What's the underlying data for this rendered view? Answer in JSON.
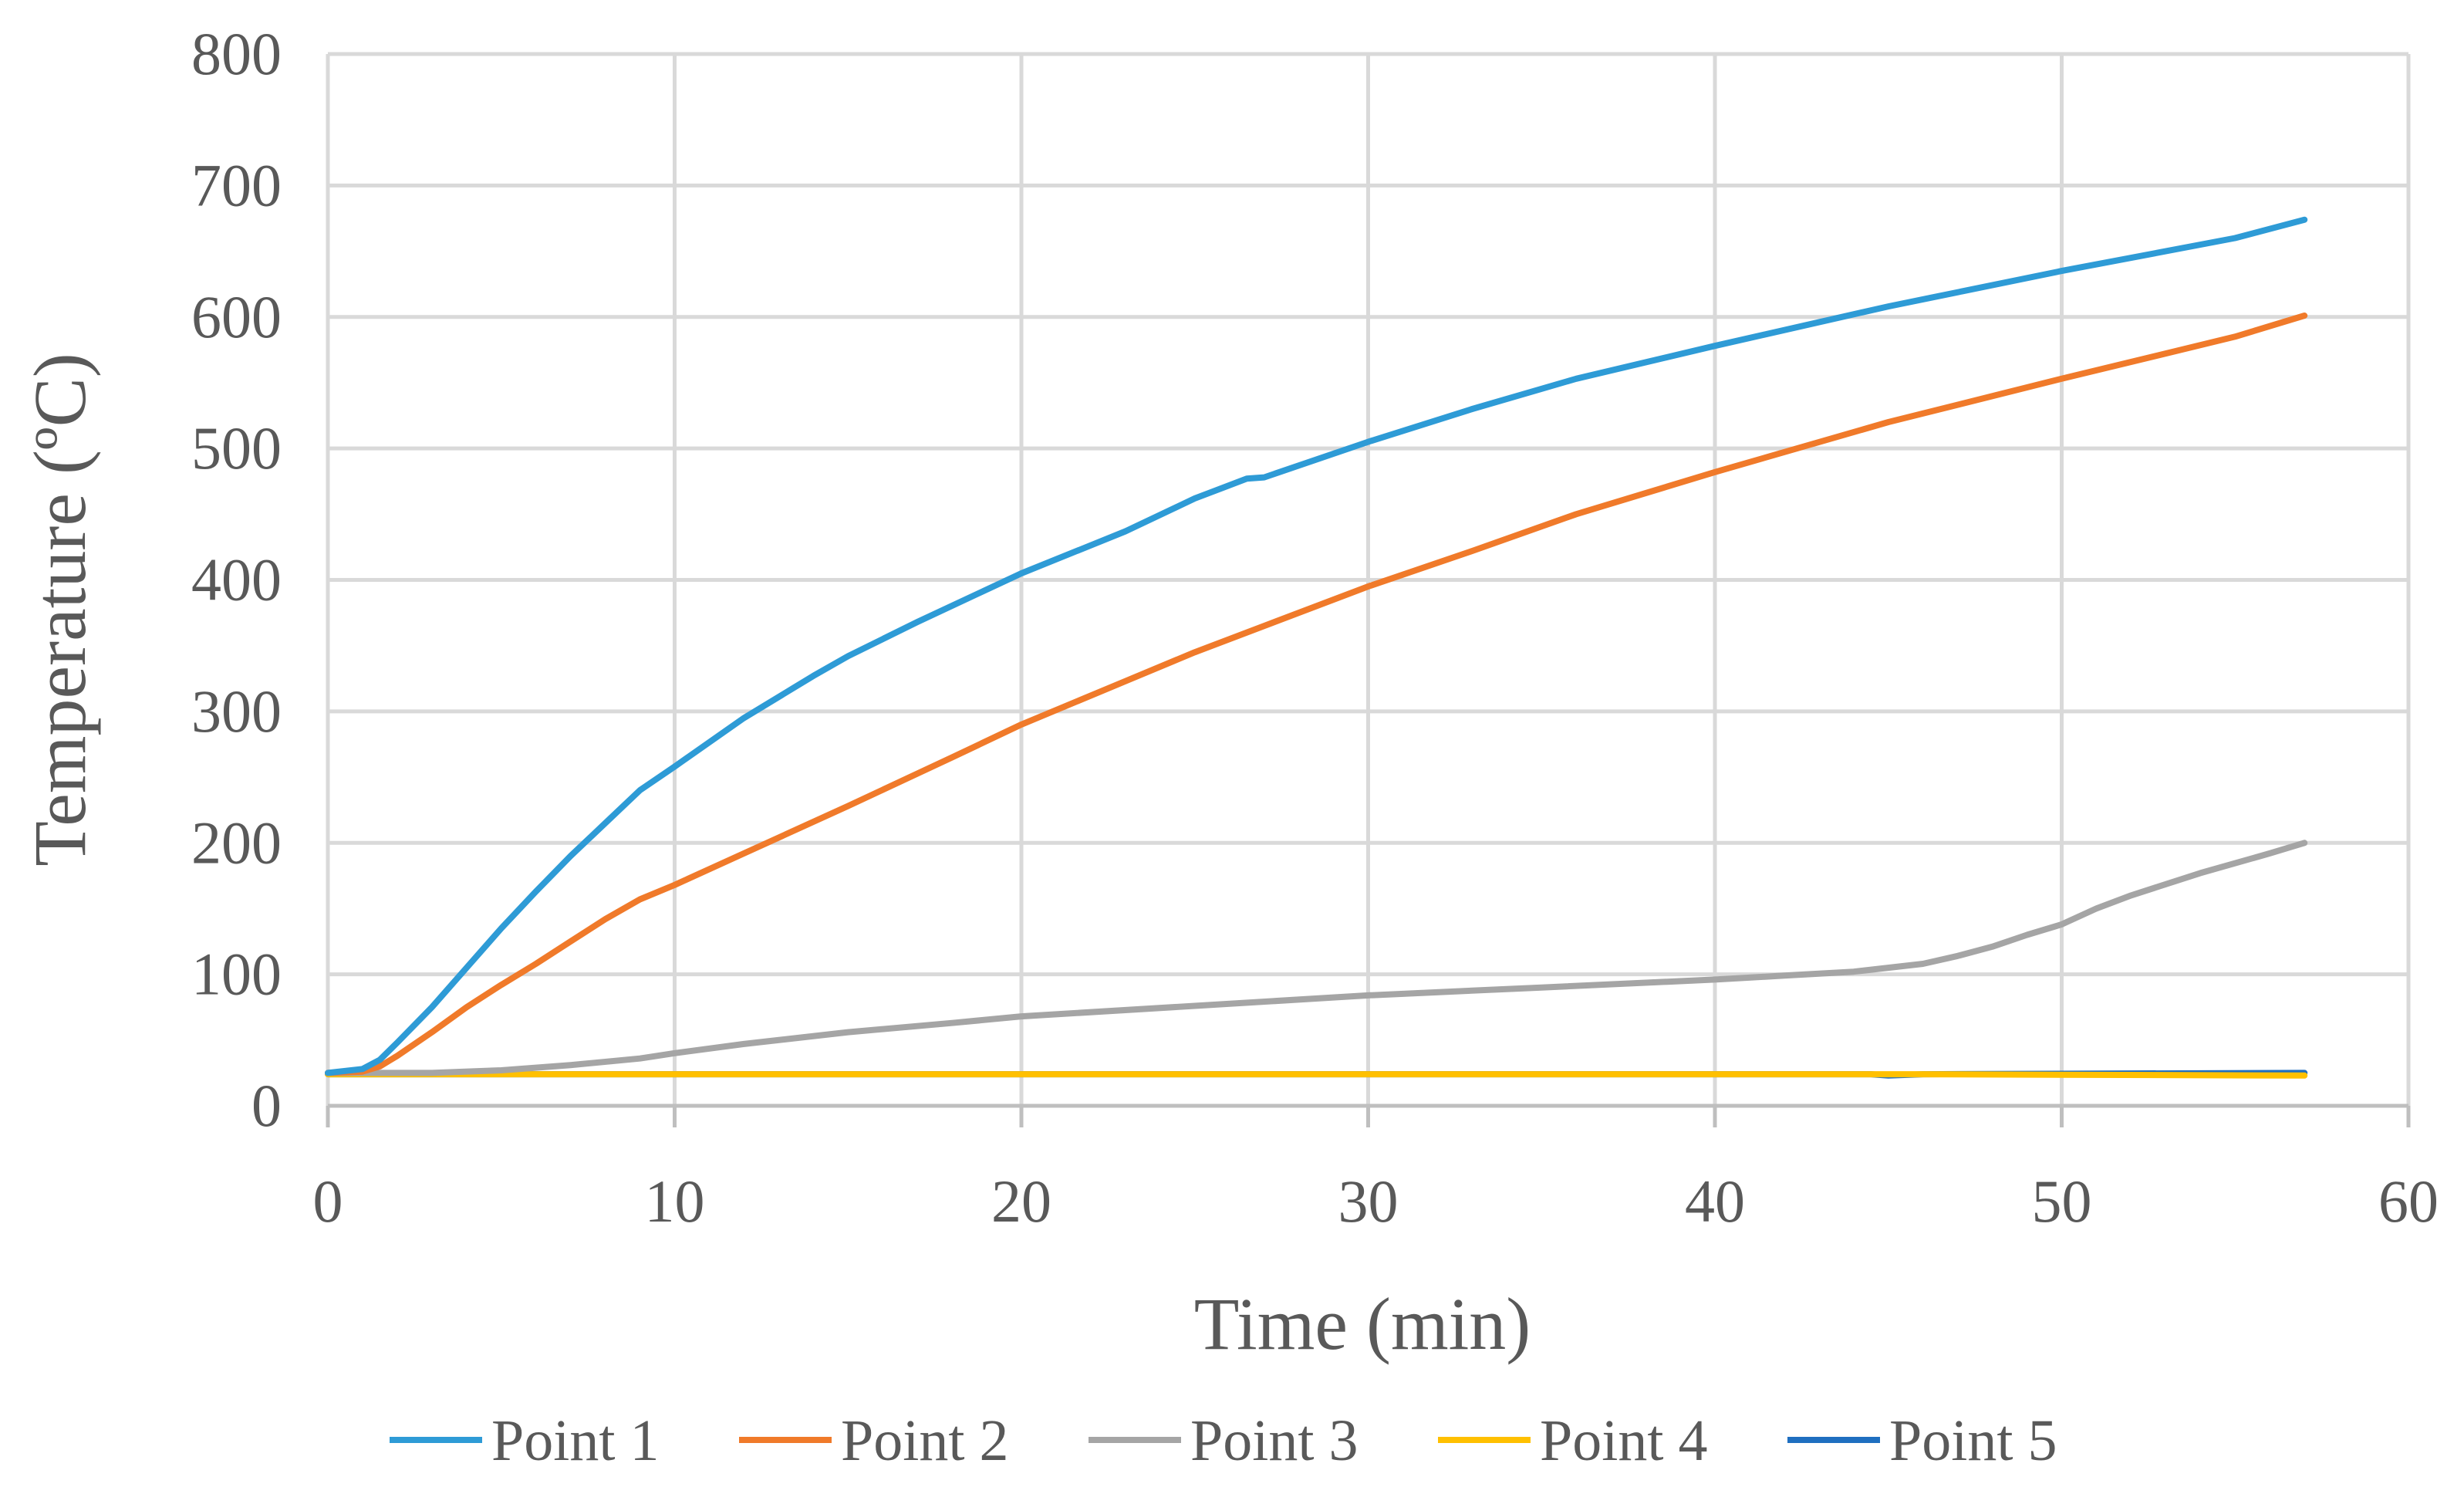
{
  "chart_data": {
    "type": "line",
    "xlabel": "Time (min)",
    "ylabel": "Temperature (ºC)",
    "xlim": [
      0,
      60
    ],
    "ylim": [
      0,
      800
    ],
    "x_ticks": [
      "0",
      "10",
      "20",
      "30",
      "40",
      "50",
      "60"
    ],
    "y_ticks": [
      "0",
      "100",
      "200",
      "300",
      "400",
      "500",
      "600",
      "700",
      "800"
    ],
    "grid": true,
    "legend_position": "bottom",
    "series": [
      {
        "name": "Point 1",
        "color": "#2e9bd6",
        "points": [
          [
            0,
            25
          ],
          [
            1,
            28
          ],
          [
            1.5,
            35
          ],
          [
            2,
            48
          ],
          [
            3,
            75
          ],
          [
            4,
            105
          ],
          [
            5,
            135
          ],
          [
            6,
            163
          ],
          [
            7,
            190
          ],
          [
            8,
            215
          ],
          [
            9,
            240
          ],
          [
            10,
            258
          ],
          [
            12,
            295
          ],
          [
            14,
            327
          ],
          [
            15,
            342
          ],
          [
            17,
            368
          ],
          [
            20,
            405
          ],
          [
            23,
            437
          ],
          [
            25,
            462
          ],
          [
            26.5,
            477
          ],
          [
            27,
            478
          ],
          [
            30,
            505
          ],
          [
            33,
            530
          ],
          [
            36,
            553
          ],
          [
            40,
            578
          ],
          [
            45,
            608
          ],
          [
            50,
            635
          ],
          [
            55,
            660
          ],
          [
            57,
            674
          ]
        ]
      },
      {
        "name": "Point 2",
        "color": "#f07a2a",
        "points": [
          [
            0,
            25
          ],
          [
            1,
            26
          ],
          [
            1.5,
            30
          ],
          [
            2,
            38
          ],
          [
            3,
            56
          ],
          [
            4,
            75
          ],
          [
            5,
            92
          ],
          [
            6,
            108
          ],
          [
            7,
            125
          ],
          [
            8,
            142
          ],
          [
            9,
            157
          ],
          [
            10,
            168
          ],
          [
            12,
            192
          ],
          [
            15,
            228
          ],
          [
            18,
            265
          ],
          [
            20,
            290
          ],
          [
            23,
            323
          ],
          [
            25,
            345
          ],
          [
            27,
            365
          ],
          [
            30,
            395
          ],
          [
            33,
            422
          ],
          [
            36,
            450
          ],
          [
            40,
            482
          ],
          [
            45,
            520
          ],
          [
            50,
            553
          ],
          [
            55,
            585
          ],
          [
            57,
            601
          ]
        ]
      },
      {
        "name": "Point 3",
        "color": "#a5a5a5",
        "points": [
          [
            0,
            25
          ],
          [
            3,
            25
          ],
          [
            5,
            27
          ],
          [
            7,
            31
          ],
          [
            9,
            36
          ],
          [
            10,
            40
          ],
          [
            12,
            47
          ],
          [
            15,
            56
          ],
          [
            18,
            63
          ],
          [
            20,
            68
          ],
          [
            25,
            76
          ],
          [
            30,
            84
          ],
          [
            35,
            90
          ],
          [
            40,
            96
          ],
          [
            42,
            99
          ],
          [
            44,
            102
          ],
          [
            46,
            108
          ],
          [
            47,
            114
          ],
          [
            48,
            121
          ],
          [
            49,
            130
          ],
          [
            50,
            138
          ],
          [
            51,
            150
          ],
          [
            52,
            160
          ],
          [
            54,
            177
          ],
          [
            56,
            192
          ],
          [
            57,
            200
          ]
        ]
      },
      {
        "name": "Point 4",
        "color": "#ffc000",
        "points": [
          [
            0,
            24
          ],
          [
            46,
            24
          ],
          [
            57,
            23
          ]
        ]
      },
      {
        "name": "Point 5",
        "color": "#1f6fc0",
        "points": [
          [
            0,
            24
          ],
          [
            44.5,
            24
          ],
          [
            45,
            23
          ],
          [
            46,
            24
          ],
          [
            57,
            25
          ]
        ]
      }
    ]
  }
}
